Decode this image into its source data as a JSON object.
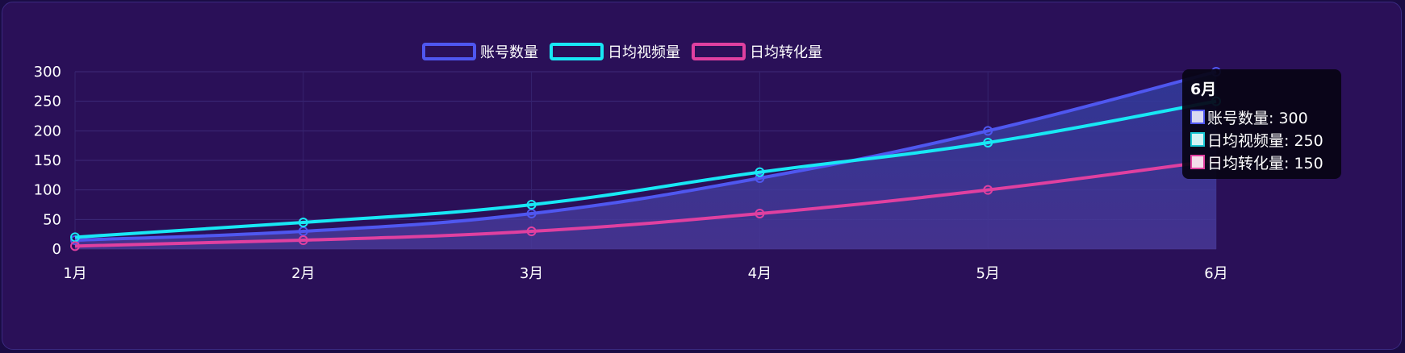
{
  "chart_data": {
    "type": "line",
    "categories": [
      "1月",
      "2月",
      "3月",
      "4月",
      "5月",
      "6月"
    ],
    "series": [
      {
        "name": "账号数量",
        "values": [
          15,
          30,
          60,
          120,
          200,
          300
        ],
        "color": "#4f57f0",
        "area": true
      },
      {
        "name": "日均视频量",
        "values": [
          20,
          45,
          75,
          130,
          180,
          250
        ],
        "color": "#18e8f5"
      },
      {
        "name": "日均转化量",
        "values": [
          5,
          15,
          30,
          60,
          100,
          150
        ],
        "color": "#e040a0"
      }
    ],
    "yticks": [
      0,
      50,
      100,
      150,
      200,
      250,
      300
    ],
    "ylim": [
      0,
      300
    ],
    "grid": true,
    "legend": "top-center",
    "tooltip": {
      "title": "6月",
      "rows": [
        "账号数量: 300",
        "日均视频量: 250",
        "日均转化量: 150"
      ],
      "swatch_fills": [
        "#d8d8f0",
        "#d4f4f6",
        "#f4dcea"
      ],
      "swatch_borders": [
        "#4f57f0",
        "#18c8d5",
        "#e040a0"
      ]
    }
  }
}
